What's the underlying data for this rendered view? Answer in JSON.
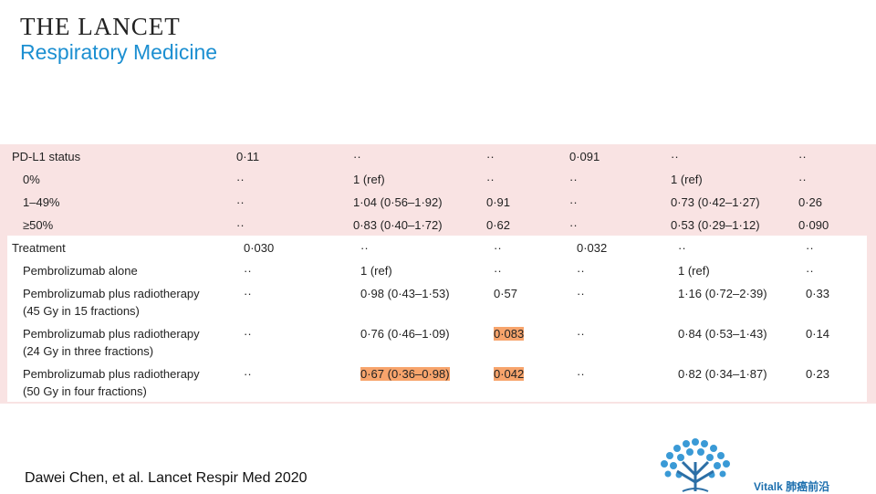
{
  "header": {
    "title": "THE LANCET",
    "subtitle": "Respiratory Medicine"
  },
  "table": {
    "sections": [
      {
        "label": [
          "PD-L1 status"
        ],
        "cells": [
          "0·11",
          "··",
          "··",
          "0·091",
          "··",
          "··"
        ],
        "rows": [
          {
            "label": [
              "0%"
            ],
            "cells": [
              "··",
              "1 (ref)",
              "··",
              "··",
              "1 (ref)",
              "··"
            ]
          },
          {
            "label": [
              "1–49%"
            ],
            "cells": [
              "··",
              "1·04 (0·56–1·92)",
              "0·91",
              "··",
              "0·73 (0·42–1·27)",
              "0·26"
            ]
          },
          {
            "label": [
              "≥50%"
            ],
            "cells": [
              "··",
              "0·83 (0·40–1·72)",
              "0·62",
              "··",
              "0·53 (0·29–1·12)",
              "0·090"
            ]
          }
        ]
      },
      {
        "label": [
          "Treatment"
        ],
        "cells": [
          "0·030",
          "··",
          "··",
          "0·032",
          "··",
          "··"
        ],
        "rows": [
          {
            "label": [
              "Pembrolizumab alone"
            ],
            "cells": [
              "··",
              "1 (ref)",
              "··",
              "··",
              "1 (ref)",
              "··"
            ]
          },
          {
            "label": [
              "Pembrolizumab plus radiotherapy",
              "(45 Gy in 15 fractions)"
            ],
            "cells": [
              "··",
              "0·98 (0·43–1·53)",
              "0·57",
              "··",
              "1·16 (0·72–2·39)",
              "0·33"
            ]
          },
          {
            "label": [
              "Pembrolizumab plus radiotherapy",
              "(24 Gy in three fractions)"
            ],
            "cells": [
              "··",
              "0·76 (0·46–1·09)",
              {
                "text": "0·083",
                "highlight": true
              },
              "··",
              "0·84 (0·53–1·43)",
              "0·14"
            ]
          },
          {
            "label": [
              "Pembrolizumab plus radiotherapy",
              "(50 Gy in four fractions)"
            ],
            "cells": [
              "··",
              {
                "text": "0·67 (0·36–0·98)",
                "highlight": true
              },
              {
                "text": "0·042",
                "highlight": true
              },
              "··",
              "0·82 (0·34–1·87)",
              "0·23"
            ]
          }
        ]
      }
    ]
  },
  "citation": "Dawei Chen, et al. Lancet Respir Med 2020",
  "brand": "Vitalk 肺癌前沿"
}
